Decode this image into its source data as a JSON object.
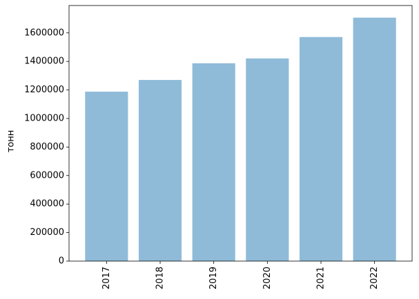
{
  "chart_data": {
    "type": "bar",
    "ylabel": "тонн",
    "categories": [
      "2017",
      "2018",
      "2019",
      "2020",
      "2021",
      "2022"
    ],
    "values": [
      1188000,
      1270000,
      1387000,
      1421000,
      1571000,
      1707000
    ],
    "color": "#8fbbd9",
    "ylim": [
      0,
      1792000
    ],
    "yticks": [
      0,
      200000,
      400000,
      600000,
      800000,
      1000000,
      1200000,
      1400000,
      1600000
    ]
  }
}
